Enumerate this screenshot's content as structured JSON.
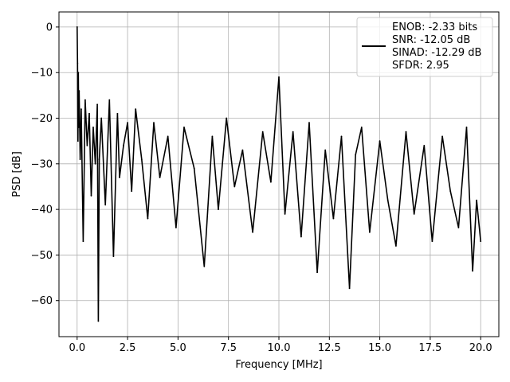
{
  "chart_data": {
    "type": "line",
    "title": "",
    "xlabel": "Frequency [MHz]",
    "ylabel": "PSD [dB]",
    "xlim": [
      -0.9,
      20.9
    ],
    "ylim": [
      -67.9,
      3.3
    ],
    "grid": true,
    "legend_position": "top-right",
    "x_ticks": [
      0.0,
      2.5,
      5.0,
      7.5,
      10.0,
      12.5,
      15.0,
      17.5,
      20.0
    ],
    "x_tick_labels": [
      "0.0",
      "2.5",
      "5.0",
      "7.5",
      "10.0",
      "12.5",
      "15.0",
      "17.5",
      "20.0"
    ],
    "y_ticks": [
      0,
      -10,
      -20,
      -30,
      -40,
      -50,
      -60
    ],
    "y_tick_labels": [
      "0",
      "−10",
      "−20",
      "−30",
      "−40",
      "−50",
      "−60"
    ],
    "series": [
      {
        "legend_lines": [
          "ENOB: -2.33 bits",
          "SNR: -12.05 dB",
          "SINAD: -12.29 dB",
          "SFDR: 2.95"
        ],
        "color": "#000000",
        "x": [
          0.0,
          0.02,
          0.04,
          0.06,
          0.08,
          0.1,
          0.15,
          0.2,
          0.3,
          0.4,
          0.5,
          0.6,
          0.7,
          0.8,
          0.9,
          1.0,
          1.05,
          1.1,
          1.2,
          1.4,
          1.6,
          1.8,
          2.0,
          2.1,
          2.3,
          2.5,
          2.7,
          2.9,
          3.2,
          3.5,
          3.8,
          4.1,
          4.5,
          4.9,
          5.3,
          5.8,
          6.3,
          6.7,
          7.0,
          7.4,
          7.8,
          8.2,
          8.7,
          9.2,
          9.6,
          10.0,
          10.3,
          10.7,
          11.1,
          11.5,
          11.9,
          12.3,
          12.7,
          13.1,
          13.5,
          13.8,
          14.1,
          14.5,
          15.0,
          15.4,
          15.8,
          16.3,
          16.7,
          17.2,
          17.6,
          18.1,
          18.5,
          18.9,
          19.3,
          19.6,
          19.8,
          20.0
        ],
        "y": [
          0,
          -8,
          -25,
          -10,
          -22,
          -14,
          -29,
          -18,
          -47,
          -16,
          -26,
          -19,
          -37,
          -22,
          -30,
          -17,
          -64.5,
          -29,
          -20,
          -39,
          -16,
          -50.3,
          -19,
          -33,
          -26,
          -21,
          -36,
          -18,
          -29,
          -42,
          -21,
          -33,
          -24,
          -44,
          -22,
          -31,
          -52.5,
          -24,
          -40,
          -20,
          -35,
          -27,
          -45,
          -23,
          -34,
          -11,
          -41,
          -23,
          -46,
          -21,
          -53.8,
          -27,
          -42,
          -24,
          -57.3,
          -28,
          -22,
          -45,
          -25,
          -38,
          -48,
          -23,
          -41,
          -26,
          -47,
          -24,
          -36,
          -44,
          -22,
          -53.5,
          -38,
          -47
        ]
      }
    ]
  }
}
